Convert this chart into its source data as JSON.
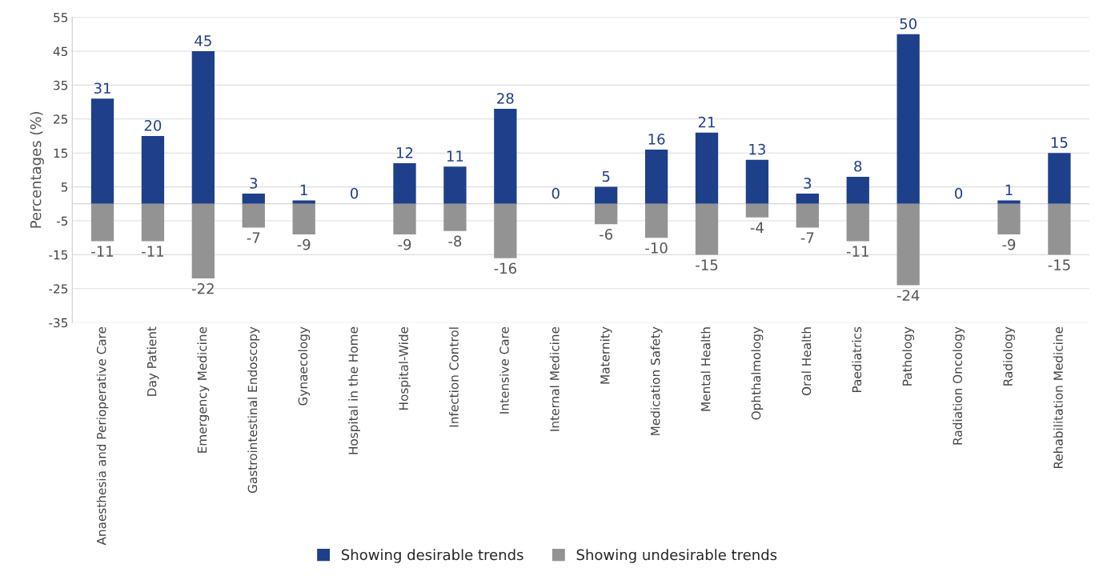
{
  "chart_data": {
    "type": "bar",
    "ylabel": "Percentages (%)",
    "categories": [
      "Anaesthesia and Perioperative Care",
      "Day Patient",
      "Emergency Medicine",
      "Gastrointestinal Endoscopy",
      "Gynaecology",
      "Hospital in the Home",
      "Hospital-Wide",
      "Infection Control",
      "Intensive Care",
      "Internal Medicine",
      "Maternity",
      "Medication Safety",
      "Mental Health",
      "Ophthalmology",
      "Oral Health",
      "Paediatrics",
      "Pathology",
      "Radiation Oncology",
      "Radiology",
      "Rehabilitation Medicine"
    ],
    "series": [
      {
        "name": "Showing desirable trends",
        "color": "#1e3f8a",
        "values": [
          31,
          20,
          45,
          3,
          1,
          0,
          12,
          11,
          28,
          0,
          5,
          16,
          21,
          13,
          3,
          8,
          50,
          0,
          1,
          15
        ],
        "value_labels": [
          "31",
          "20",
          "45",
          "3",
          "1",
          "0",
          "12",
          "11",
          "28",
          "0",
          "5",
          "16",
          "21",
          "13",
          "3",
          "8",
          "50",
          "0",
          "1",
          "15"
        ]
      },
      {
        "name": "Showing undesirable trends",
        "color": "#939393",
        "values": [
          -11,
          -11,
          -22,
          -7,
          -9,
          null,
          -9,
          -8,
          -16,
          null,
          -6,
          -10,
          -15,
          -4,
          -7,
          -11,
          -24,
          null,
          -9,
          -15
        ],
        "value_labels": [
          "-11",
          "-11",
          "-22",
          "-7",
          "-9",
          null,
          "-9",
          "-8",
          "-16",
          null,
          "-6",
          "-10",
          "-15",
          "-4",
          "-7",
          "-11",
          "-24",
          null,
          "-9",
          "-15"
        ]
      }
    ],
    "ylim": [
      -35,
      55
    ],
    "yticks": [
      -35,
      -25,
      -15,
      -5,
      5,
      15,
      25,
      35,
      45,
      55
    ],
    "grid": "y",
    "legend": "bottom",
    "stacked": true
  }
}
